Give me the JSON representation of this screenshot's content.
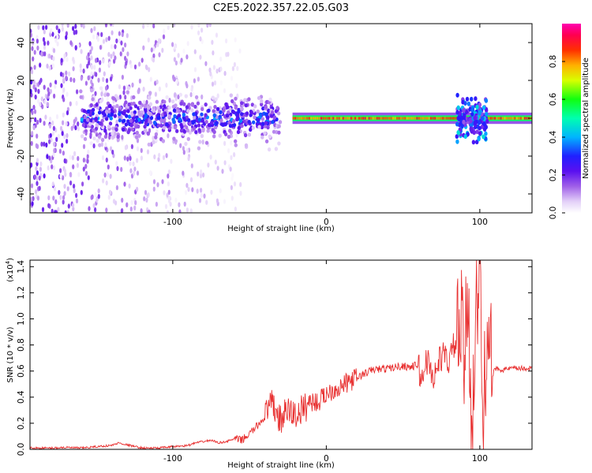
{
  "title": "C2E5.2022.357.22.05.G03",
  "chart_data": [
    {
      "type": "heatmap",
      "xlabel": "Height of straight line (km)",
      "ylabel": "Frequency (Hz)",
      "xlim": [
        -193,
        134
      ],
      "ylim": [
        -50,
        50
      ],
      "x_ticks": [
        -100,
        0,
        100
      ],
      "y_ticks": [
        -40,
        -20,
        0,
        20,
        40
      ],
      "colorbar": {
        "label": "Normalized spectral amplitude",
        "range": [
          0,
          1
        ],
        "ticks": [
          0.0,
          0.2,
          0.4,
          0.6,
          0.8
        ],
        "colors": [
          "#ffffff",
          "#d9c2f5",
          "#8a2be2",
          "#3a00ff",
          "#00c8ff",
          "#00ff60",
          "#ffee00",
          "#ff5a00",
          "#ff0030",
          "#ff00aa"
        ]
      },
      "features": [
        {
          "x_range": [
            -193,
            -55
          ],
          "description": "diffuse low-amplitude scatter across all frequencies"
        },
        {
          "x_range": [
            -160,
            -30
          ],
          "freq_center": 0,
          "peak_amplitude": 0.35
        },
        {
          "x_range": [
            -22,
            90
          ],
          "freq_center": 0,
          "peak_amplitude": 0.9
        },
        {
          "x_range": [
            85,
            105
          ],
          "freq_center": 0,
          "peak_amplitude": 0.35
        },
        {
          "x_range": [
            105,
            134
          ],
          "freq_center": 0,
          "peak_amplitude": 0.8
        }
      ]
    },
    {
      "type": "line",
      "xlabel": "Height of straight line (km)",
      "ylabel": "SNR (10 * v/v)",
      "yscale_label": "(x10",
      "yscale_exp": "4",
      "xlim": [
        -193,
        134
      ],
      "ylim": [
        0,
        1.45
      ],
      "x_ticks": [
        -100,
        0,
        100
      ],
      "y_ticks": [
        0.0,
        0.2,
        0.4,
        0.6,
        0.8,
        1.0,
        1.2,
        1.4
      ],
      "series": [
        {
          "color": "#e83030",
          "x": [
            -193,
            -180,
            -170,
            -160,
            -150,
            -140,
            -135,
            -130,
            -120,
            -110,
            -100,
            -90,
            -85,
            -80,
            -75,
            -70,
            -65,
            -60,
            -55,
            -50,
            -45,
            -40,
            -35,
            -30,
            -25,
            -20,
            -15,
            -10,
            -5,
            0,
            5,
            10,
            15,
            20,
            25,
            30,
            40,
            50,
            55,
            60,
            62,
            65,
            70,
            75,
            80,
            85,
            88,
            90,
            92,
            95,
            97,
            100,
            102,
            105,
            108,
            110,
            115,
            120,
            125,
            134
          ],
          "values": [
            0.01,
            0.01,
            0.015,
            0.01,
            0.02,
            0.03,
            0.05,
            0.035,
            0.01,
            0.01,
            0.02,
            0.03,
            0.05,
            0.06,
            0.07,
            0.05,
            0.06,
            0.08,
            0.07,
            0.12,
            0.18,
            0.25,
            0.35,
            0.22,
            0.3,
            0.26,
            0.31,
            0.37,
            0.36,
            0.43,
            0.46,
            0.48,
            0.52,
            0.55,
            0.58,
            0.61,
            0.62,
            0.64,
            0.63,
            0.65,
            0.5,
            0.7,
            0.55,
            0.72,
            0.68,
            0.85,
            0.95,
            0.6,
            1.25,
            0.2,
            0.85,
            1.45,
            0.1,
            1.1,
            0.55,
            0.62,
            0.61,
            0.62,
            0.62,
            0.62
          ]
        }
      ]
    }
  ]
}
